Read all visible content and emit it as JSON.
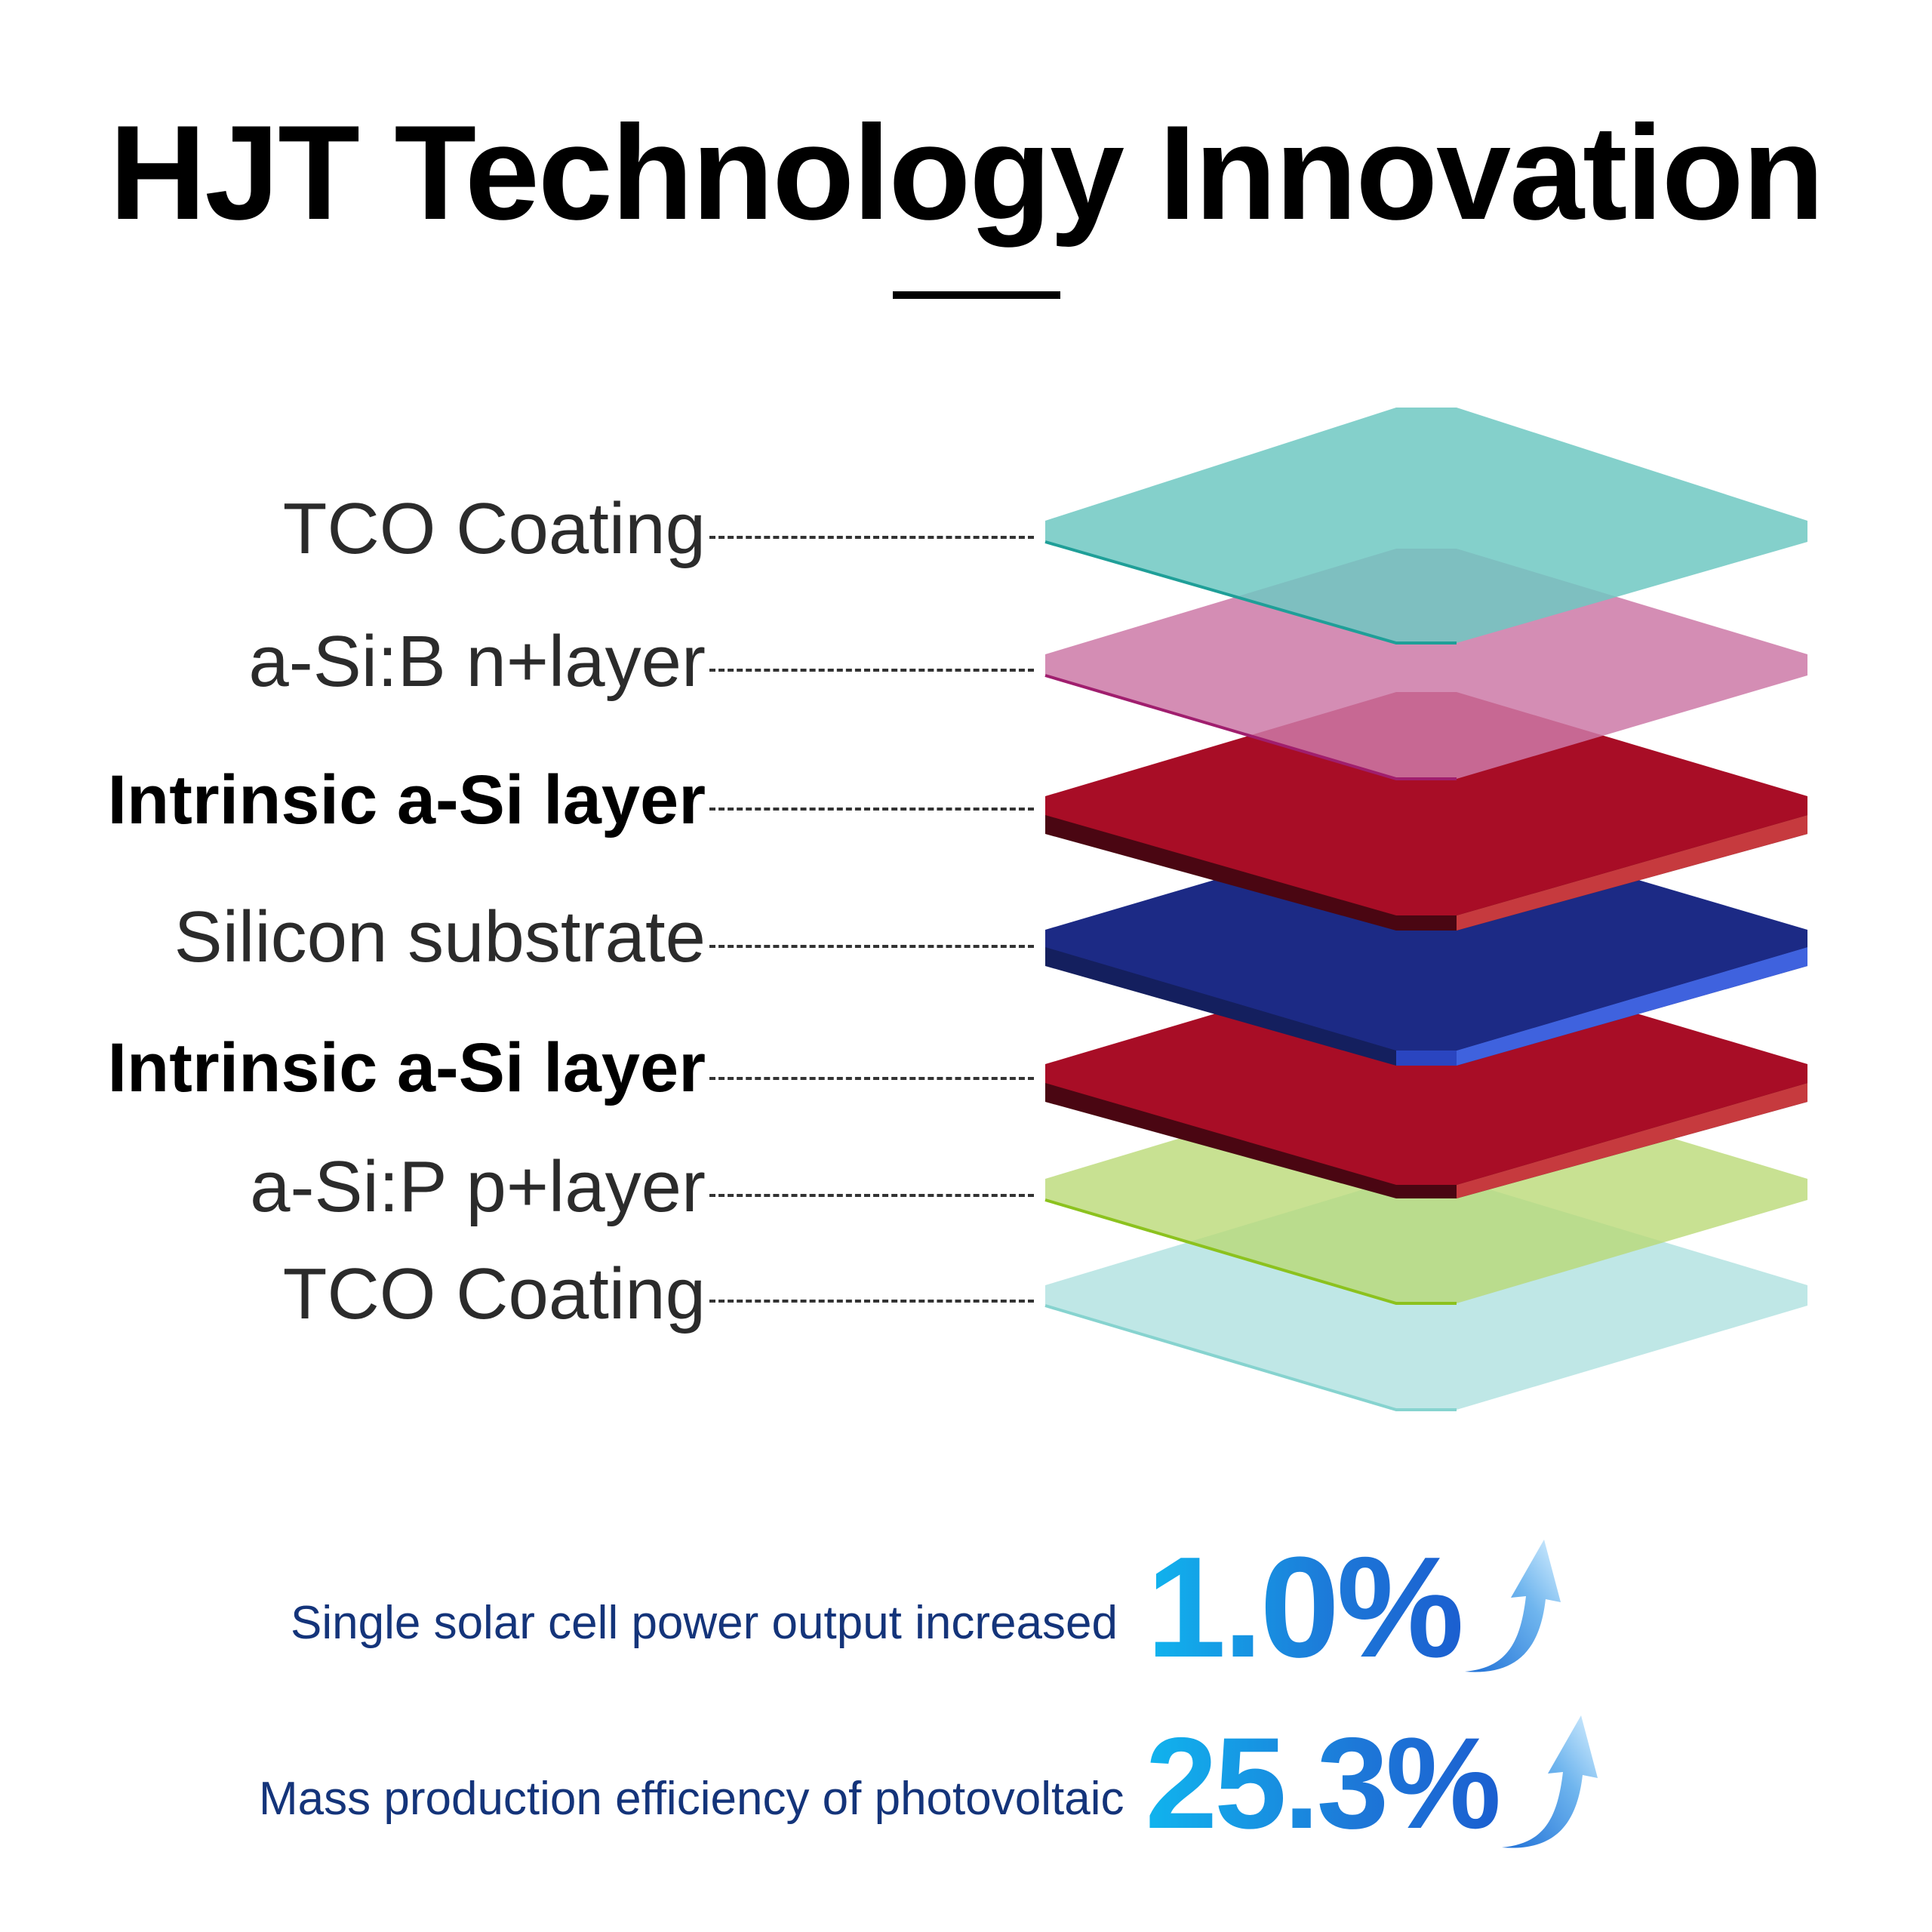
{
  "title": "HJT Technology Innovation",
  "layers": [
    {
      "label": "TCO Coating",
      "bold": false,
      "color": "#7fcfca",
      "edge": "#2aa9a2"
    },
    {
      "label": "a-Si:B n+layer",
      "bold": false,
      "color": "#cc79a7",
      "edge": "#a01e6e"
    },
    {
      "label": "Intrinsic a-Si layer",
      "bold": true,
      "color": "#a80d26",
      "edge": "#4a0610"
    },
    {
      "label": "Silicon substrate",
      "bold": false,
      "color": "#1c2a85",
      "edge": "#3f5fdc"
    },
    {
      "label": "Intrinsic a-Si layer",
      "bold": true,
      "color": "#a80d26",
      "edge": "#4a0610"
    },
    {
      "label": "a-Si:P p+layer",
      "bold": false,
      "color": "#c6df8c",
      "edge": "#8cc21e"
    },
    {
      "label": "TCO Coating",
      "bold": false,
      "color": "#bfe7e6",
      "edge": "#7fd3cf"
    }
  ],
  "stats": [
    {
      "text": "Single solar cell power output increased",
      "value": "1.0%"
    },
    {
      "text": "Mass production efficiency of photovoltaic",
      "value": "25.3%"
    }
  ],
  "icons": [
    "arrow-up-icon"
  ]
}
